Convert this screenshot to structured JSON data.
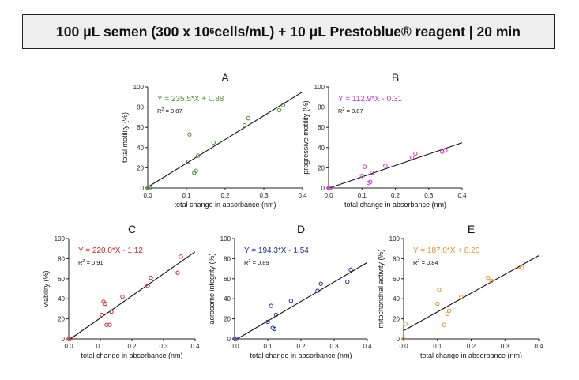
{
  "header": {
    "title_pre": "100 μL semen (300 x 10",
    "title_sup": "6",
    "title_post": " cells/mL) + 10 μL Prestoblue® reagent | 20 min"
  },
  "chart_data": [
    {
      "type": "scatter",
      "panel": "A",
      "xlabel": "total change in absorbance (nm)",
      "ylabel": "total motility (%)",
      "xlim": [
        0,
        0.4
      ],
      "ylim": [
        0,
        100
      ],
      "xticks": [
        0,
        0.1,
        0.2,
        0.3,
        0.4
      ],
      "xtick_labels": [
        "0.0",
        "0.1",
        "0.2",
        "0.3",
        "0.4"
      ],
      "yticks": [
        0,
        20,
        40,
        60,
        80,
        100
      ],
      "ytick_labels": [
        "0",
        "20",
        "40",
        "60",
        "80",
        "100"
      ],
      "color": "#4e8a2e",
      "equation": "Y = 235.5*X + 0.88",
      "r2_label": "R",
      "r2_exp": "2",
      "r2_value": " = 0.87",
      "slope": 235.5,
      "intercept": 0.88,
      "points": [
        [
          0.0,
          0
        ],
        [
          0.005,
          0
        ],
        [
          0.105,
          26
        ],
        [
          0.108,
          53
        ],
        [
          0.12,
          15
        ],
        [
          0.125,
          17
        ],
        [
          0.13,
          32
        ],
        [
          0.17,
          45
        ],
        [
          0.25,
          62
        ],
        [
          0.26,
          69
        ],
        [
          0.34,
          77
        ],
        [
          0.35,
          82
        ]
      ]
    },
    {
      "type": "scatter",
      "panel": "B",
      "xlabel": "total change in absorbance (nm)",
      "ylabel": "progressive motility (%)",
      "xlim": [
        0,
        0.4
      ],
      "ylim": [
        0,
        100
      ],
      "xticks": [
        0,
        0.1,
        0.2,
        0.3,
        0.4
      ],
      "xtick_labels": [
        "0.0",
        "0.1",
        "0.2",
        "0.3",
        "0.4"
      ],
      "yticks": [
        0,
        20,
        40,
        60,
        80,
        100
      ],
      "ytick_labels": [
        "0",
        "20",
        "40",
        "60",
        "80",
        "100"
      ],
      "color": "#cc33cc",
      "equation": "Y = 112.9*X - 0.31",
      "r2_label": "R",
      "r2_exp": "2",
      "r2_value": " = 0.87",
      "slope": 112.9,
      "intercept": -0.31,
      "points": [
        [
          0.0,
          0
        ],
        [
          0.005,
          0
        ],
        [
          0.1,
          12
        ],
        [
          0.108,
          21
        ],
        [
          0.12,
          5
        ],
        [
          0.125,
          6
        ],
        [
          0.13,
          15
        ],
        [
          0.17,
          22
        ],
        [
          0.25,
          30
        ],
        [
          0.26,
          34
        ],
        [
          0.34,
          36
        ],
        [
          0.35,
          37
        ]
      ]
    },
    {
      "type": "scatter",
      "panel": "C",
      "xlabel": "total change in absorbance (nm)",
      "ylabel": "viability (%)",
      "xlim": [
        0,
        0.4
      ],
      "ylim": [
        0,
        100
      ],
      "xticks": [
        0,
        0.1,
        0.2,
        0.3,
        0.4
      ],
      "xtick_labels": [
        "0.0",
        "0.1",
        "0.2",
        "0.3",
        "0.4"
      ],
      "yticks": [
        0,
        20,
        40,
        60,
        80,
        100
      ],
      "ytick_labels": [
        "0",
        "20",
        "40",
        "60",
        "80",
        "100"
      ],
      "color": "#d02828",
      "equation": "Y = 220.0*X - 1.12",
      "r2_label": "R",
      "r2_exp": "2",
      "r2_value": " = 0.91",
      "slope": 220.0,
      "intercept": -1.12,
      "points": [
        [
          0.0,
          0
        ],
        [
          0.005,
          0
        ],
        [
          0.105,
          24
        ],
        [
          0.11,
          37
        ],
        [
          0.115,
          35
        ],
        [
          0.12,
          14
        ],
        [
          0.13,
          14
        ],
        [
          0.135,
          27
        ],
        [
          0.17,
          42
        ],
        [
          0.25,
          53
        ],
        [
          0.26,
          61
        ],
        [
          0.345,
          66
        ],
        [
          0.355,
          82
        ]
      ]
    },
    {
      "type": "scatter",
      "panel": "D",
      "xlabel": "total change in absorbance (nm)",
      "ylabel": "acrosome integrity (%)",
      "xlim": [
        0,
        0.4
      ],
      "ylim": [
        0,
        100
      ],
      "xticks": [
        0,
        0.1,
        0.2,
        0.3,
        0.4
      ],
      "xtick_labels": [
        "0.0",
        "0.1",
        "0.2",
        "0.3",
        "0.4"
      ],
      "yticks": [
        0,
        20,
        40,
        60,
        80,
        100
      ],
      "ytick_labels": [
        "0",
        "20",
        "40",
        "60",
        "80",
        "100"
      ],
      "color": "#1f2a9a",
      "equation": "Y = 194.3*X - 1.54",
      "r2_label": "R",
      "r2_exp": "2",
      "r2_value": " = 0.89",
      "slope": 194.3,
      "intercept": -1.54,
      "points": [
        [
          0.0,
          0
        ],
        [
          0.005,
          0
        ],
        [
          0.1,
          17
        ],
        [
          0.11,
          33
        ],
        [
          0.115,
          11
        ],
        [
          0.12,
          10
        ],
        [
          0.125,
          24
        ],
        [
          0.17,
          38
        ],
        [
          0.25,
          48
        ],
        [
          0.26,
          55
        ],
        [
          0.34,
          57
        ],
        [
          0.35,
          69
        ]
      ]
    },
    {
      "type": "scatter",
      "panel": "E",
      "xlabel": "total change in absorbance (nm)",
      "ylabel": "mitochondrial activity (%)",
      "xlim": [
        0,
        0.4
      ],
      "ylim": [
        0,
        100
      ],
      "xticks": [
        0,
        0.1,
        0.2,
        0.3,
        0.4
      ],
      "xtick_labels": [
        "0.0",
        "0.1",
        "0.2",
        "0.3",
        "0.4"
      ],
      "yticks": [
        0,
        20,
        40,
        60,
        80,
        100
      ],
      "ytick_labels": [
        "0",
        "20",
        "40",
        "60",
        "80",
        "100"
      ],
      "color": "#e8922a",
      "equation": "Y = 187.0*X + 8.20",
      "r2_label": "R",
      "r2_exp": "2",
      "r2_value": " = 0.84",
      "slope": 187.0,
      "intercept": 8.2,
      "points": [
        [
          0.0,
          0
        ],
        [
          0.005,
          15
        ],
        [
          0.1,
          35
        ],
        [
          0.105,
          49
        ],
        [
          0.12,
          14
        ],
        [
          0.13,
          25
        ],
        [
          0.135,
          28
        ],
        [
          0.17,
          42
        ],
        [
          0.25,
          61
        ],
        [
          0.26,
          58
        ],
        [
          0.34,
          72
        ],
        [
          0.35,
          71
        ]
      ]
    }
  ]
}
